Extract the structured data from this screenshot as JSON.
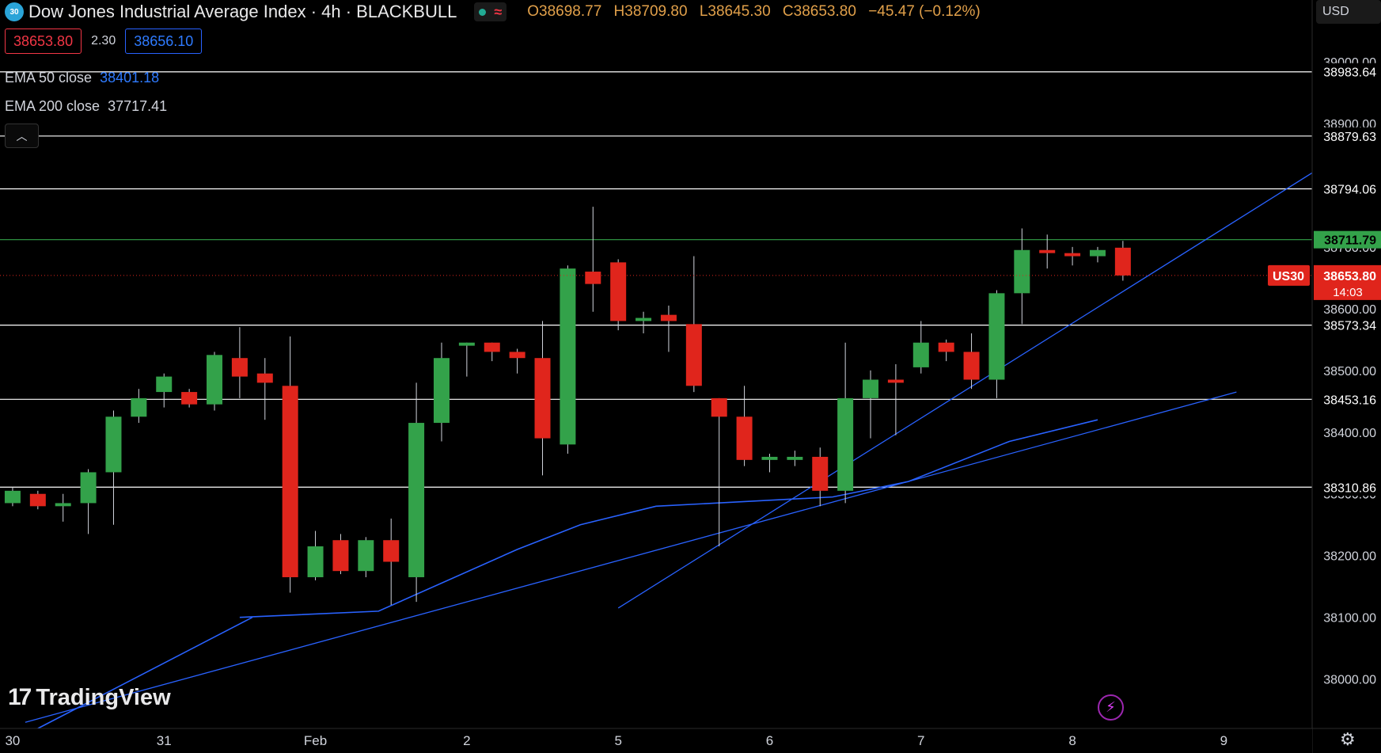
{
  "header": {
    "symbol_badge": "30",
    "title": "Dow Jones Industrial Average Index · 4h · BLACKBULL",
    "ohlc": {
      "o_label": "O",
      "o": "38698.77",
      "h_label": "H",
      "h": "38709.80",
      "l_label": "L",
      "l": "38645.30",
      "c_label": "C",
      "c": "38653.80",
      "change": "−45.47 (−0.12%)"
    },
    "bid": "38653.80",
    "spread": "2.30",
    "ask": "38656.10",
    "ema50_label": "EMA 50 close",
    "ema50_value": "38401.18",
    "ema200_label": "EMA 200 close",
    "ema200_value": "37717.41",
    "currency": "USD"
  },
  "logo": {
    "text": "TradingView"
  },
  "colors": {
    "up": "#33a24a",
    "down": "#e0251c",
    "ema": "#2962ff",
    "bg": "#000000",
    "hline": "#ffffff",
    "hline_green": "#33a24a"
  },
  "chart_data": {
    "type": "candlestick",
    "ylim": [
      37920,
      39100
    ],
    "xlim": [
      0,
      52
    ],
    "y_ticks": [
      "38000.00",
      "38100.00",
      "38200.00",
      "38300.00",
      "38400.00",
      "38500.00",
      "38600.00",
      "38700.00",
      "38800.00",
      "38900.00",
      "39000.00"
    ],
    "x_ticks": [
      {
        "label": "30",
        "x": 0.5
      },
      {
        "label": "31",
        "x": 6.5
      },
      {
        "label": "Feb",
        "x": 12.5
      },
      {
        "label": "2",
        "x": 18.5
      },
      {
        "label": "5",
        "x": 24.5
      },
      {
        "label": "6",
        "x": 30.5
      },
      {
        "label": "7",
        "x": 36.5
      },
      {
        "label": "8",
        "x": 42.5
      },
      {
        "label": "9",
        "x": 48.5
      }
    ],
    "candles": [
      {
        "o": 38285,
        "h": 38310,
        "l": 38280,
        "c": 38305
      },
      {
        "o": 38300,
        "h": 38305,
        "l": 38275,
        "c": 38280
      },
      {
        "o": 38280,
        "h": 38300,
        "l": 38255,
        "c": 38285
      },
      {
        "o": 38285,
        "h": 38340,
        "l": 38235,
        "c": 38335
      },
      {
        "o": 38335,
        "h": 38435,
        "l": 38250,
        "c": 38425
      },
      {
        "o": 38425,
        "h": 38470,
        "l": 38415,
        "c": 38455
      },
      {
        "o": 38465,
        "h": 38495,
        "l": 38440,
        "c": 38490
      },
      {
        "o": 38465,
        "h": 38470,
        "l": 38440,
        "c": 38445
      },
      {
        "o": 38445,
        "h": 38530,
        "l": 38435,
        "c": 38525
      },
      {
        "o": 38520,
        "h": 38570,
        "l": 38455,
        "c": 38490
      },
      {
        "o": 38495,
        "h": 38520,
        "l": 38420,
        "c": 38480
      },
      {
        "o": 38475,
        "h": 38555,
        "l": 38140,
        "c": 38165
      },
      {
        "o": 38165,
        "h": 38240,
        "l": 38160,
        "c": 38215
      },
      {
        "o": 38225,
        "h": 38235,
        "l": 38170,
        "c": 38175
      },
      {
        "o": 38175,
        "h": 38230,
        "l": 38165,
        "c": 38225
      },
      {
        "o": 38225,
        "h": 38260,
        "l": 38120,
        "c": 38190
      },
      {
        "o": 38165,
        "h": 38480,
        "l": 38125,
        "c": 38415
      },
      {
        "o": 38415,
        "h": 38545,
        "l": 38385,
        "c": 38520
      },
      {
        "o": 38540,
        "h": 38545,
        "l": 38490,
        "c": 38545
      },
      {
        "o": 38545,
        "h": 38545,
        "l": 38515,
        "c": 38530
      },
      {
        "o": 38530,
        "h": 38535,
        "l": 38495,
        "c": 38520
      },
      {
        "o": 38520,
        "h": 38580,
        "l": 38330,
        "c": 38390
      },
      {
        "o": 38380,
        "h": 38670,
        "l": 38365,
        "c": 38665
      },
      {
        "o": 38660,
        "h": 38765,
        "l": 38595,
        "c": 38640
      },
      {
        "o": 38675,
        "h": 38680,
        "l": 38565,
        "c": 38580
      },
      {
        "o": 38580,
        "h": 38595,
        "l": 38560,
        "c": 38585
      },
      {
        "o": 38590,
        "h": 38605,
        "l": 38530,
        "c": 38580
      },
      {
        "o": 38575,
        "h": 38685,
        "l": 38465,
        "c": 38475
      },
      {
        "o": 38455,
        "h": 38455,
        "l": 38215,
        "c": 38425
      },
      {
        "o": 38425,
        "h": 38475,
        "l": 38345,
        "c": 38355
      },
      {
        "o": 38355,
        "h": 38365,
        "l": 38335,
        "c": 38360
      },
      {
        "o": 38355,
        "h": 38370,
        "l": 38345,
        "c": 38360
      },
      {
        "o": 38360,
        "h": 38375,
        "l": 38280,
        "c": 38305
      },
      {
        "o": 38305,
        "h": 38545,
        "l": 38285,
        "c": 38455
      },
      {
        "o": 38455,
        "h": 38500,
        "l": 38390,
        "c": 38485
      },
      {
        "o": 38485,
        "h": 38510,
        "l": 38395,
        "c": 38480
      },
      {
        "o": 38505,
        "h": 38580,
        "l": 38495,
        "c": 38545
      },
      {
        "o": 38545,
        "h": 38550,
        "l": 38515,
        "c": 38530
      },
      {
        "o": 38530,
        "h": 38560,
        "l": 38470,
        "c": 38485
      },
      {
        "o": 38485,
        "h": 38630,
        "l": 38455,
        "c": 38625
      },
      {
        "o": 38625,
        "h": 38730,
        "l": 38575,
        "c": 38695
      },
      {
        "o": 38695,
        "h": 38720,
        "l": 38665,
        "c": 38690
      },
      {
        "o": 38690,
        "h": 38700,
        "l": 38670,
        "c": 38685
      },
      {
        "o": 38685,
        "h": 38700,
        "l": 38675,
        "c": 38695
      },
      {
        "o": 38698.77,
        "h": 38709.8,
        "l": 38645.3,
        "c": 38653.8
      }
    ],
    "ema50": [
      {
        "x": 9.5,
        "y": 38100
      },
      {
        "x": 15,
        "y": 38110
      },
      {
        "x": 20.5,
        "y": 38210
      },
      {
        "x": 23,
        "y": 38250
      },
      {
        "x": 26,
        "y": 38280
      },
      {
        "x": 33,
        "y": 38295
      },
      {
        "x": 36,
        "y": 38320
      },
      {
        "x": 40,
        "y": 38385
      },
      {
        "x": 43.5,
        "y": 38420
      }
    ],
    "ema200": [
      {
        "x": 1.5,
        "y": 37920
      },
      {
        "x": 10,
        "y": 38100
      }
    ],
    "trendlines": [
      {
        "x1": 1,
        "y1": 37930,
        "x2": 49,
        "y2": 38465
      },
      {
        "x1": 24.5,
        "y1": 38115,
        "x2": 52,
        "y2": 38820
      }
    ],
    "horizontal_levels": [
      {
        "value": 38983.64,
        "label": "38983.64",
        "color": "#ffffff"
      },
      {
        "value": 38879.63,
        "label": "38879.63",
        "color": "#ffffff"
      },
      {
        "value": 38794.06,
        "label": "38794.06",
        "color": "#ffffff"
      },
      {
        "value": 38711.79,
        "label": "38711.79",
        "color": "#33a24a"
      },
      {
        "value": 38573.34,
        "label": "38573.34",
        "color": "#ffffff"
      },
      {
        "value": 38453.16,
        "label": "38453.16",
        "color": "#ffffff"
      },
      {
        "value": 38310.86,
        "label": "38310.86",
        "color": "#ffffff"
      }
    ],
    "current_price": {
      "value": 38653.8,
      "label": "38653.80",
      "countdown": "14:03",
      "symbol": "US30"
    }
  }
}
